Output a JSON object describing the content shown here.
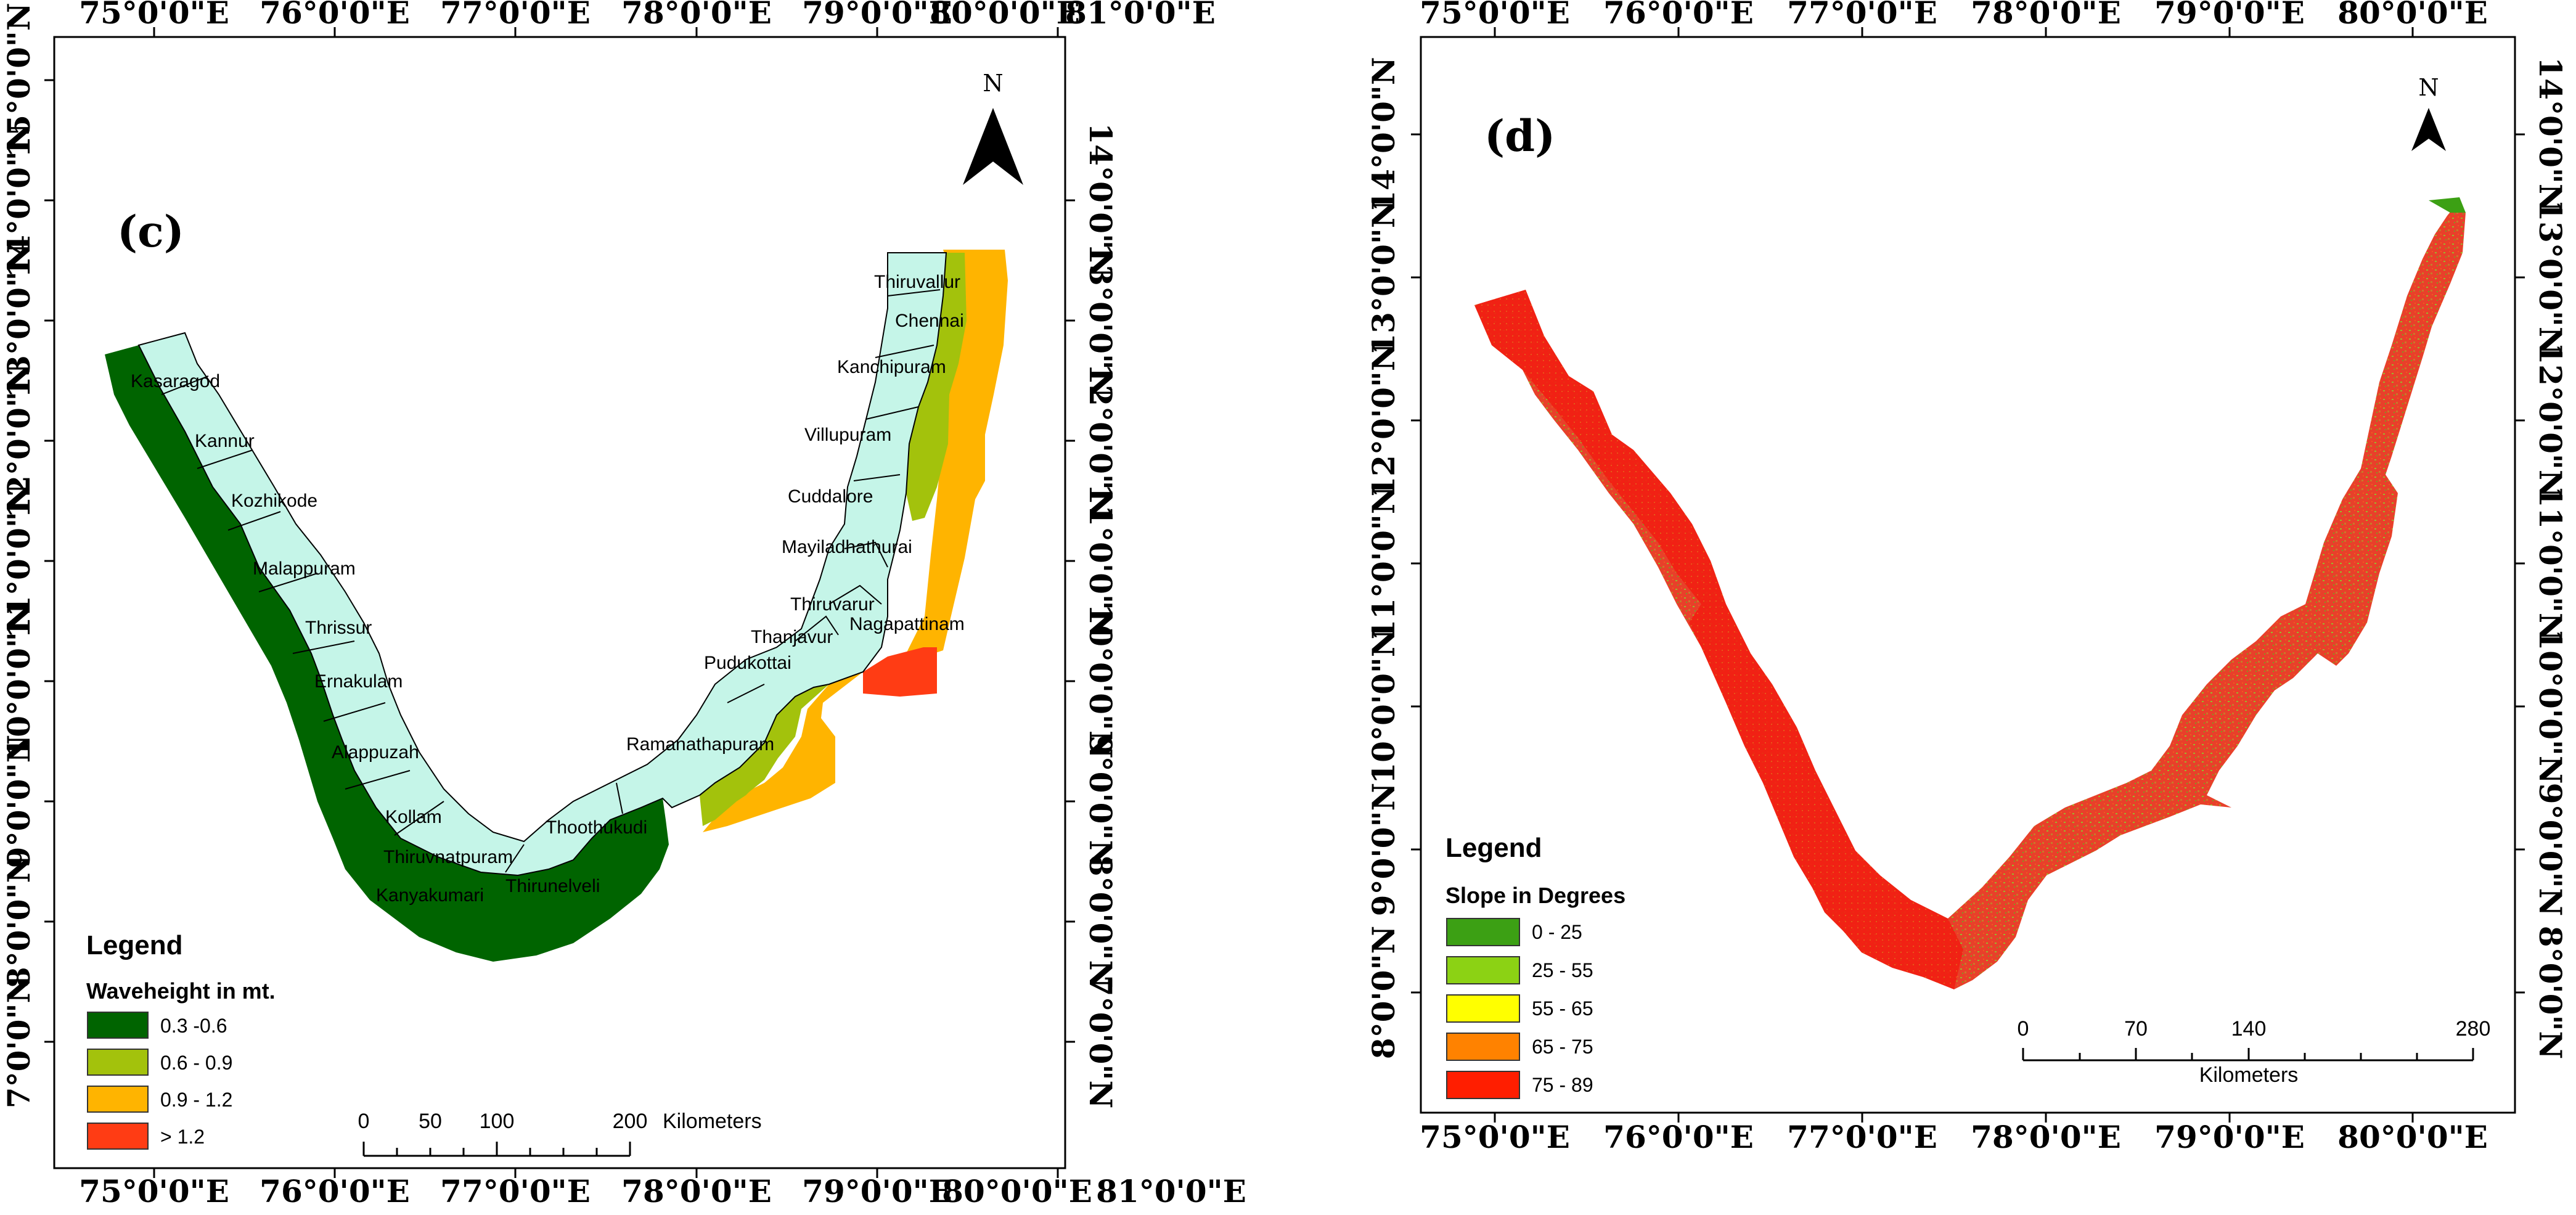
{
  "panel_c": {
    "label": "(c)",
    "north": "N",
    "top_lon": [
      "75°0'0\"E",
      "76°0'0\"E",
      "77°0'0\"E",
      "78°0'0\"E",
      "79°0'0\"E",
      "80°0'0\"E",
      "81°0'0\"E"
    ],
    "bottom_lon": [
      "75°0'0\"E",
      "76°0'0\"E",
      "77°0'0\"E",
      "78°0'0\"E",
      "79°0'0\"E",
      "80°0'0\"E",
      "81°0'0\"E"
    ],
    "left_lat": [
      "15°0'0\"N",
      "14°0'0\"N",
      "13°0'0\"N",
      "12°0'0\"N",
      "11°0'0\"N",
      "10°0'0\"N",
      "9°0'0\"N",
      "8°0'0\"N",
      "7°0'0\"N"
    ],
    "right_lat": [
      "14°0'0\"N",
      "13°0'0\"N",
      "12°0'0\"N",
      "11°0'0\"N",
      "10°0'0\"N",
      "9°0'0\"N",
      "8°0'0\"N",
      "7°0'0\"N"
    ],
    "districts": [
      "Kasaragod",
      "Kannur",
      "Kozhikode",
      "Malappuram",
      "Thrissur",
      "Ernakulam",
      "Alappuzah",
      "Kollam",
      "Thiruvnatpuram",
      "Kanyakumari",
      "Thirunelveli",
      "Thoothukudi",
      "Ramanathapuram",
      "Pudukottai",
      "Thanjavur",
      "Thiruvarur",
      "Nagapattinam",
      "Mayiladhathurai",
      "Cuddalore",
      "Villupuram",
      "Kanchipuram",
      "Chennai",
      "Thiruvallur"
    ],
    "legend": {
      "title": "Legend",
      "subtitle": "Waveheight in mt.",
      "items": [
        {
          "label": "0.3 -0.6",
          "color": "#006400"
        },
        {
          "label": "0.6 - 0.9",
          "color": "#a3c20c"
        },
        {
          "label": "0.9 - 1.2",
          "color": "#ffb400"
        },
        {
          "label": "> 1.2",
          "color": "#ff3c14"
        }
      ]
    },
    "scale": {
      "ticks": [
        "0",
        "50",
        "100",
        "200"
      ],
      "unit": "Kilometers"
    },
    "land_color": "#c5f5e8"
  },
  "panel_d": {
    "label": "(d)",
    "north": "N",
    "top_lon": [
      "75°0'0\"E",
      "76°0'0\"E",
      "77°0'0\"E",
      "78°0'0\"E",
      "79°0'0\"E",
      "80°0'0\"E"
    ],
    "bottom_lon": [
      "75°0'0\"E",
      "76°0'0\"E",
      "77°0'0\"E",
      "78°0'0\"E",
      "79°0'0\"E",
      "80°0'0\"E"
    ],
    "left_lat": [
      "14°0'0\"N",
      "13°0'0\"N",
      "12°0'0\"N",
      "11°0'0\"N",
      "10°0'0\"N",
      "9°0'0\"N",
      "8°0'0\"N"
    ],
    "right_lat": [
      "14°0'0\"N",
      "13°0'0\"N",
      "12°0'0\"N",
      "11°0'0\"N",
      "10°0'0\"N",
      "9°0'0\"N",
      "8°0'0\"N"
    ],
    "legend": {
      "title": "Legend",
      "subtitle": "Slope in Degrees",
      "items": [
        {
          "label": "0 - 25",
          "color": "#3ca014"
        },
        {
          "label": "25 - 55",
          "color": "#8cd214"
        },
        {
          "label": "55 - 65",
          "color": "#ffff00"
        },
        {
          "label": "65 - 75",
          "color": "#ff8200"
        },
        {
          "label": "75 - 89",
          "color": "#ff1e00"
        }
      ]
    },
    "scale": {
      "ticks": [
        "0",
        "70",
        "140",
        "280"
      ],
      "unit": "Kilometers"
    }
  }
}
